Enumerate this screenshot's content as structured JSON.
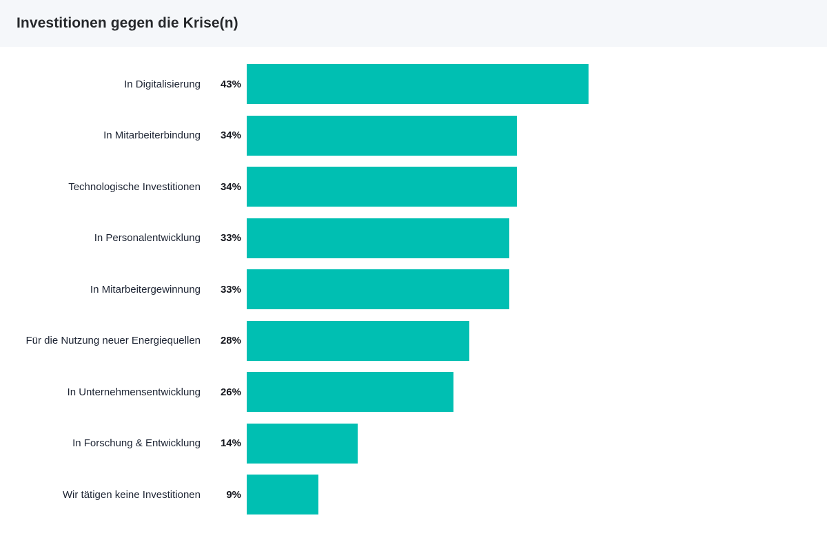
{
  "header": {
    "title": "Investitionen gegen die Krise(n)"
  },
  "chart_data": {
    "type": "bar",
    "orientation": "horizontal",
    "title": "Investitionen gegen die Krise(n)",
    "categories": [
      "In Digitalisierung",
      "In Mitarbeiterbindung",
      "Technologische Investitionen",
      "In Personalentwicklung",
      "In Mitarbeitergewinnung",
      "Für die Nutzung neuer Energiequellen",
      "In Unternehmensentwicklung",
      "In Forschung & Entwicklung",
      "Wir tätigen keine Investitionen"
    ],
    "values": [
      43,
      34,
      34,
      33,
      33,
      28,
      26,
      14,
      9
    ],
    "value_suffix": "%",
    "bar_color": "#00bfb2",
    "xlim": [
      0,
      43
    ],
    "grid": false,
    "legend": "none",
    "value_label_position": "left-of-bar"
  }
}
